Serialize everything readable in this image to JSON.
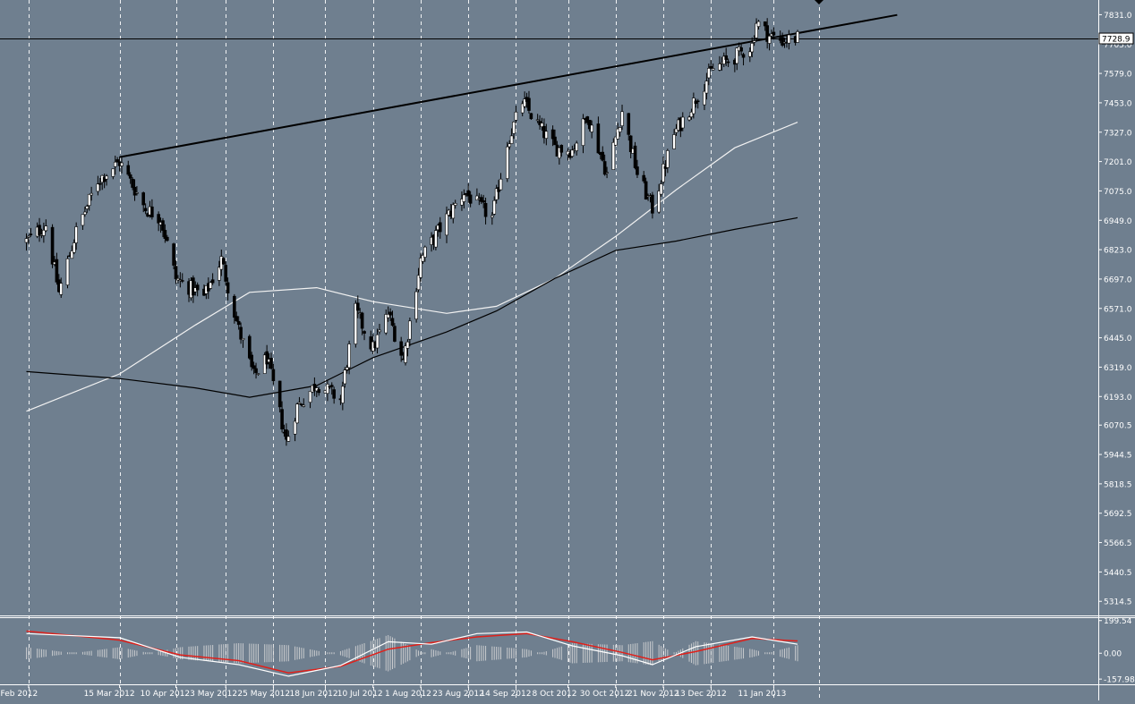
{
  "chart_data": [
    {
      "type": "candlestick",
      "title": "",
      "xlabel": "",
      "ylabel": "",
      "ylim": [
        5254,
        7894
      ],
      "colors": {
        "background": "#6f7f8f",
        "bull": "#ffffff",
        "bear": "#000000",
        "ma_fast": "#f2f2f2",
        "ma_slow": "#000000",
        "trendline": "#000000",
        "grid": "#ffffff",
        "axis_text": "#ffffff"
      },
      "grid": "vertical dashed at date ticks",
      "y_ticks": [
        7831.0,
        7705.0,
        7579.0,
        7453.0,
        7327.0,
        7201.0,
        7075.0,
        6949.0,
        6823.0,
        6697.0,
        6571.0,
        6445.0,
        6319.0,
        6193.0,
        6070.5,
        5944.5,
        5818.5,
        5692.5,
        5566.5,
        5440.5,
        5314.5
      ],
      "y_tick_labels": [
        "7831.0",
        "7705.0",
        "7579.0",
        "7453.0",
        "7327.0",
        "7201.0",
        "7075.0",
        "6949.0",
        "6823.0",
        "6697.0",
        "6571.0",
        "6445.0",
        "6319.0",
        "6193.0",
        "6070.5",
        "5944.5",
        "5818.5",
        "5692.5",
        "5566.5",
        "5440.5",
        "5314.5"
      ],
      "x_tick_labels": [
        "2 Feb 2012",
        "15 Mar 2012",
        "10 Apr 2012",
        "3 May 2012",
        "25 May 2012",
        "18 Jun 2012",
        "10 Jul 2012",
        "1 Aug 2012",
        "23 Aug 2012",
        "14 Sep 2012",
        "8 Oct 2012",
        "30 Oct 2012",
        "21 Nov 2012",
        "13 Dec 2012",
        "11 Jan 2013"
      ],
      "current_price": 7728.9,
      "current_price_label": "7728.9",
      "price_path": [
        {
          "date": "2012-02-01",
          "close": 6860
        },
        {
          "date": "2012-02-10",
          "close": 6930
        },
        {
          "date": "2012-02-16",
          "close": 6640
        },
        {
          "date": "2012-02-24",
          "close": 6900
        },
        {
          "date": "2012-03-05",
          "close": 7120
        },
        {
          "date": "2012-03-15",
          "close": 7200
        },
        {
          "date": "2012-03-27",
          "close": 7000
        },
        {
          "date": "2012-04-03",
          "close": 6960
        },
        {
          "date": "2012-04-10",
          "close": 6700
        },
        {
          "date": "2012-04-23",
          "close": 6620
        },
        {
          "date": "2012-05-01",
          "close": 6780
        },
        {
          "date": "2012-05-09",
          "close": 6480
        },
        {
          "date": "2012-05-16",
          "close": 6280
        },
        {
          "date": "2012-05-22",
          "close": 6360
        },
        {
          "date": "2012-05-31",
          "close": 6000
        },
        {
          "date": "2012-06-05",
          "close": 6150
        },
        {
          "date": "2012-06-14",
          "close": 6250
        },
        {
          "date": "2012-06-25",
          "close": 6180
        },
        {
          "date": "2012-07-02",
          "close": 6560
        },
        {
          "date": "2012-07-10",
          "close": 6400
        },
        {
          "date": "2012-07-17",
          "close": 6550
        },
        {
          "date": "2012-07-24",
          "close": 6350
        },
        {
          "date": "2012-08-01",
          "close": 6780
        },
        {
          "date": "2012-08-13",
          "close": 6960
        },
        {
          "date": "2012-08-21",
          "close": 7070
        },
        {
          "date": "2012-09-03",
          "close": 6960
        },
        {
          "date": "2012-09-10",
          "close": 7280
        },
        {
          "date": "2012-09-17",
          "close": 7460
        },
        {
          "date": "2012-09-24",
          "close": 7360
        },
        {
          "date": "2012-10-02",
          "close": 7260
        },
        {
          "date": "2012-10-10",
          "close": 7250
        },
        {
          "date": "2012-10-17",
          "close": 7400
        },
        {
          "date": "2012-10-26",
          "close": 7150
        },
        {
          "date": "2012-11-02",
          "close": 7420
        },
        {
          "date": "2012-11-09",
          "close": 7150
        },
        {
          "date": "2012-11-16",
          "close": 7000
        },
        {
          "date": "2012-11-26",
          "close": 7320
        },
        {
          "date": "2012-12-04",
          "close": 7440
        },
        {
          "date": "2012-12-14",
          "close": 7600
        },
        {
          "date": "2012-12-24",
          "close": 7650
        },
        {
          "date": "2013-01-01",
          "close": 7700
        },
        {
          "date": "2013-01-03",
          "close": 7800
        },
        {
          "date": "2013-01-09",
          "close": 7740
        },
        {
          "date": "2013-01-15",
          "close": 7720
        },
        {
          "date": "2013-01-22",
          "close": 7730
        }
      ],
      "ma_fast": [
        {
          "date": "2012-02-01",
          "value": 6130
        },
        {
          "date": "2012-03-15",
          "value": 6290
        },
        {
          "date": "2012-04-19",
          "value": 6500
        },
        {
          "date": "2012-05-14",
          "value": 6640
        },
        {
          "date": "2012-06-14",
          "value": 6660
        },
        {
          "date": "2012-07-10",
          "value": 6600
        },
        {
          "date": "2012-08-13",
          "value": 6550
        },
        {
          "date": "2012-09-05",
          "value": 6580
        },
        {
          "date": "2012-10-02",
          "value": 6700
        },
        {
          "date": "2012-10-30",
          "value": 6880
        },
        {
          "date": "2012-11-27",
          "value": 7080
        },
        {
          "date": "2012-12-24",
          "value": 7260
        },
        {
          "date": "2013-01-22",
          "value": 7370
        }
      ],
      "ma_slow": [
        {
          "date": "2012-02-01",
          "value": 6300
        },
        {
          "date": "2012-03-15",
          "value": 6270
        },
        {
          "date": "2012-04-19",
          "value": 6230
        },
        {
          "date": "2012-05-14",
          "value": 6190
        },
        {
          "date": "2012-06-14",
          "value": 6240
        },
        {
          "date": "2012-07-10",
          "value": 6360
        },
        {
          "date": "2012-08-13",
          "value": 6470
        },
        {
          "date": "2012-09-05",
          "value": 6560
        },
        {
          "date": "2012-10-02",
          "value": 6700
        },
        {
          "date": "2012-10-30",
          "value": 6820
        },
        {
          "date": "2012-11-27",
          "value": 6860
        },
        {
          "date": "2012-12-24",
          "value": 6910
        },
        {
          "date": "2013-01-22",
          "value": 6960
        }
      ],
      "trendline": {
        "start": {
          "date": "2012-03-15",
          "value": 7220
        },
        "end": {
          "date": "2013-03-09",
          "value": 7830
        }
      },
      "horizontal_line": 7728.9
    },
    {
      "type": "oscillator",
      "title": "",
      "ylim": [
        -190,
        220
      ],
      "y_ticks": [
        199.54,
        0.0,
        -157.98
      ],
      "y_tick_labels": [
        "199.54",
        "0.00",
        "-157.98"
      ],
      "colors": {
        "main": "#ffffff",
        "signal": "#e0201a",
        "histogram": "#d8d8d8"
      },
      "main": [
        {
          "date": "2012-02-01",
          "value": 120
        },
        {
          "date": "2012-03-15",
          "value": 95
        },
        {
          "date": "2012-04-12",
          "value": -25
        },
        {
          "date": "2012-05-09",
          "value": -70
        },
        {
          "date": "2012-06-01",
          "value": -140
        },
        {
          "date": "2012-06-25",
          "value": -75
        },
        {
          "date": "2012-07-17",
          "value": 70
        },
        {
          "date": "2012-08-06",
          "value": 55
        },
        {
          "date": "2012-08-27",
          "value": 120
        },
        {
          "date": "2012-09-19",
          "value": 130
        },
        {
          "date": "2012-10-10",
          "value": 45
        },
        {
          "date": "2012-11-02",
          "value": -15
        },
        {
          "date": "2012-11-16",
          "value": -70
        },
        {
          "date": "2012-12-06",
          "value": 40
        },
        {
          "date": "2013-01-01",
          "value": 100
        },
        {
          "date": "2013-01-22",
          "value": 55
        }
      ],
      "signal": [
        {
          "date": "2012-02-01",
          "value": 135
        },
        {
          "date": "2012-03-15",
          "value": 80
        },
        {
          "date": "2012-04-12",
          "value": -10
        },
        {
          "date": "2012-05-09",
          "value": -45
        },
        {
          "date": "2012-06-01",
          "value": -120
        },
        {
          "date": "2012-06-25",
          "value": -80
        },
        {
          "date": "2012-07-17",
          "value": 25
        },
        {
          "date": "2012-08-06",
          "value": 65
        },
        {
          "date": "2012-08-27",
          "value": 100
        },
        {
          "date": "2012-09-19",
          "value": 120
        },
        {
          "date": "2012-10-10",
          "value": 70
        },
        {
          "date": "2012-11-02",
          "value": 5
        },
        {
          "date": "2012-11-16",
          "value": -40
        },
        {
          "date": "2012-12-06",
          "value": 10
        },
        {
          "date": "2013-01-01",
          "value": 90
        },
        {
          "date": "2013-01-22",
          "value": 75
        }
      ]
    }
  ]
}
